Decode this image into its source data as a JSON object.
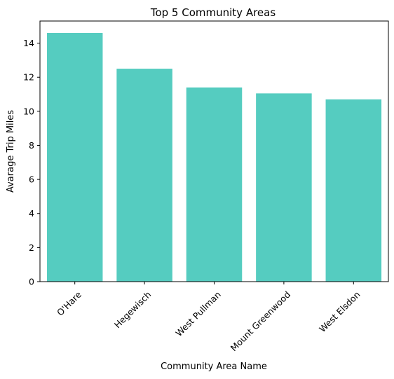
{
  "chart_data": {
    "type": "bar",
    "title": "Top 5 Community Areas",
    "xlabel": "Community Area Name",
    "ylabel": "Avarage Trip Miles",
    "categories": [
      "O'Hare",
      "Hegewisch",
      "West Pullman",
      "Mount Greenwood",
      "West Elsdon"
    ],
    "values": [
      14.6,
      12.5,
      11.4,
      11.05,
      10.7
    ],
    "ylim": [
      0,
      15.3
    ],
    "yticks": [
      "0",
      "2",
      "4",
      "6",
      "8",
      "10",
      "12",
      "14"
    ],
    "bar_color": "#55ccc0",
    "grid": false,
    "xtick_rotation_deg": 45
  }
}
